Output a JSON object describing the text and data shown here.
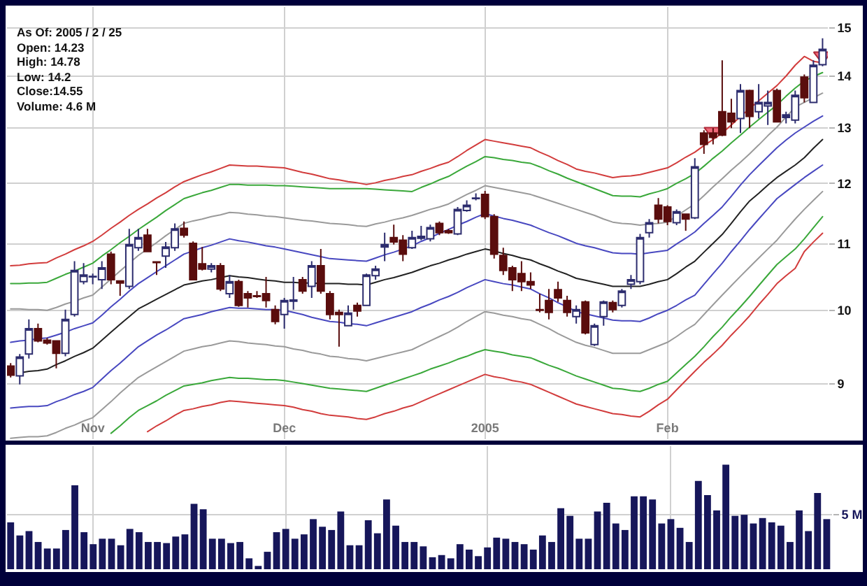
{
  "chart_data": [
    {
      "type": "candlestick",
      "annotations": [
        "As Of: 2005 / 2 / 25",
        "Open: 14.23",
        "High: 14.78",
        "Low: 14.2",
        "Close:14.55",
        "Volume: 4.6 M"
      ],
      "categories": [
        null,
        null,
        null,
        null,
        null,
        null,
        null,
        null,
        null,
        "Nov",
        null,
        null,
        null,
        null,
        null,
        null,
        null,
        null,
        null,
        null,
        null,
        null,
        null,
        null,
        null,
        null,
        null,
        null,
        null,
        null,
        "Dec",
        null,
        null,
        null,
        null,
        null,
        null,
        null,
        null,
        null,
        null,
        null,
        null,
        null,
        null,
        null,
        null,
        null,
        null,
        null,
        null,
        null,
        "2005",
        null,
        null,
        null,
        null,
        null,
        null,
        null,
        null,
        null,
        null,
        null,
        null,
        null,
        null,
        null,
        null,
        null,
        null,
        null,
        "Feb",
        null,
        null,
        null,
        null,
        null,
        null,
        null,
        null,
        null,
        null,
        null,
        null,
        null,
        null,
        null,
        null,
        null
      ],
      "ohlc": [
        [
          9.23,
          9.27,
          9.08,
          9.11
        ],
        [
          9.1,
          9.39,
          8.99,
          9.35
        ],
        [
          9.39,
          9.87,
          9.33,
          9.74
        ],
        [
          9.74,
          9.81,
          9.55,
          9.57
        ],
        [
          9.58,
          9.61,
          9.52,
          9.54
        ],
        [
          9.57,
          9.58,
          9.2,
          9.4
        ],
        [
          9.4,
          10.01,
          9.36,
          9.87
        ],
        [
          9.94,
          10.73,
          9.91,
          10.59
        ],
        [
          10.42,
          10.7,
          10.38,
          10.52
        ],
        [
          10.49,
          10.54,
          10.38,
          10.5
        ],
        [
          10.45,
          10.73,
          10.31,
          10.63
        ],
        [
          10.84,
          10.88,
          10.38,
          10.45
        ],
        [
          10.43,
          10.43,
          10.21,
          10.4
        ],
        [
          10.35,
          11.24,
          10.31,
          10.99
        ],
        [
          10.94,
          11.24,
          10.89,
          11.1
        ],
        [
          11.14,
          11.24,
          10.87,
          10.88
        ],
        [
          10.72,
          10.73,
          10.52,
          10.71
        ],
        [
          10.81,
          11.03,
          10.63,
          10.95
        ],
        [
          10.94,
          11.33,
          10.89,
          11.24
        ],
        [
          11.25,
          11.36,
          11.1,
          11.14
        ],
        [
          11.01,
          11.04,
          10.44,
          10.45
        ],
        [
          10.69,
          10.95,
          10.59,
          10.61
        ],
        [
          10.61,
          10.7,
          10.56,
          10.66
        ],
        [
          10.66,
          10.7,
          10.28,
          10.31
        ],
        [
          10.24,
          10.52,
          10.18,
          10.42
        ],
        [
          10.42,
          10.45,
          10.05,
          10.07
        ],
        [
          10.24,
          10.28,
          10.04,
          10.18
        ],
        [
          10.21,
          10.28,
          10.18,
          10.2
        ],
        [
          10.24,
          10.49,
          10.04,
          10.14
        ],
        [
          10.01,
          10.07,
          9.8,
          9.84
        ],
        [
          9.94,
          10.18,
          9.74,
          10.14
        ],
        [
          10.13,
          10.49,
          10.01,
          10.15
        ],
        [
          10.45,
          10.49,
          10.24,
          10.28
        ],
        [
          10.35,
          10.73,
          10.18,
          10.66
        ],
        [
          10.66,
          10.92,
          10.24,
          10.28
        ],
        [
          10.24,
          10.28,
          9.87,
          9.94
        ],
        [
          9.97,
          10.01,
          9.49,
          9.94
        ],
        [
          9.78,
          10.07,
          9.78,
          9.96
        ],
        [
          10.07,
          10.11,
          9.91,
          9.99
        ],
        [
          10.07,
          10.54,
          10.06,
          10.52
        ],
        [
          10.51,
          10.66,
          10.45,
          10.61
        ],
        [
          10.95,
          11.18,
          10.73,
          10.99
        ],
        [
          11.1,
          11.31,
          10.99,
          11.03
        ],
        [
          11.06,
          11.14,
          10.73,
          10.84
        ],
        [
          10.94,
          11.21,
          10.92,
          11.1
        ],
        [
          11.09,
          11.29,
          11.06,
          11.12
        ],
        [
          11.08,
          11.31,
          11.04,
          11.26
        ],
        [
          11.33,
          11.36,
          11.14,
          11.18
        ],
        [
          11.21,
          11.24,
          11.16,
          11.18
        ],
        [
          11.16,
          11.6,
          11.14,
          11.56
        ],
        [
          11.54,
          11.71,
          11.52,
          11.63
        ],
        [
          11.74,
          11.83,
          11.71,
          11.75
        ],
        [
          11.81,
          11.87,
          11.4,
          11.44
        ],
        [
          11.44,
          11.48,
          10.77,
          10.84
        ],
        [
          10.82,
          10.94,
          10.52,
          10.59
        ],
        [
          10.63,
          10.66,
          10.28,
          10.45
        ],
        [
          10.54,
          10.73,
          10.28,
          10.42
        ],
        [
          10.42,
          10.56,
          10.31,
          10.37
        ],
        [
          10.01,
          10.24,
          9.97,
          10.0
        ],
        [
          10.14,
          10.31,
          9.87,
          9.97
        ],
        [
          10.3,
          10.42,
          10.12,
          10.18
        ],
        [
          10.14,
          10.21,
          9.91,
          9.97
        ],
        [
          9.91,
          10.07,
          9.81,
          10.01
        ],
        [
          10.12,
          10.14,
          9.66,
          9.68
        ],
        [
          9.52,
          9.81,
          9.5,
          9.78
        ],
        [
          9.91,
          10.14,
          9.78,
          10.12
        ],
        [
          10.11,
          10.14,
          9.97,
          10.01
        ],
        [
          10.07,
          10.31,
          10.04,
          10.28
        ],
        [
          10.38,
          10.52,
          10.31,
          10.45
        ],
        [
          10.42,
          11.16,
          10.38,
          11.1
        ],
        [
          11.18,
          11.4,
          11.1,
          11.34
        ],
        [
          11.63,
          11.75,
          11.33,
          11.4
        ],
        [
          11.6,
          11.63,
          11.3,
          11.36
        ],
        [
          11.34,
          11.56,
          11.3,
          11.52
        ],
        [
          11.48,
          11.49,
          11.21,
          11.4
        ],
        [
          11.42,
          12.44,
          11.4,
          12.29
        ],
        [
          12.9,
          12.95,
          12.52,
          12.69
        ],
        [
          12.9,
          12.99,
          12.69,
          12.82
        ],
        [
          13.3,
          14.32,
          12.84,
          12.86
        ],
        [
          13.27,
          13.55,
          12.99,
          13.11
        ],
        [
          13.17,
          13.84,
          12.9,
          13.71
        ],
        [
          13.71,
          13.73,
          12.99,
          13.21
        ],
        [
          13.3,
          13.84,
          13.17,
          13.48
        ],
        [
          13.41,
          13.71,
          13.05,
          13.48
        ],
        [
          13.71,
          13.75,
          13.1,
          13.11
        ],
        [
          13.19,
          13.3,
          13.08,
          13.24
        ],
        [
          13.14,
          13.71,
          13.08,
          13.62
        ],
        [
          13.98,
          14.03,
          13.48,
          13.57
        ],
        [
          13.48,
          14.32,
          13.47,
          14.22
        ],
        [
          14.23,
          14.78,
          14.2,
          14.55
        ]
      ],
      "colors": [
        "#5a0d0d",
        "#ffffff",
        "#ffffff",
        "#5a0d0d",
        "#5a0d0d",
        "#5a0d0d",
        "#ffffff",
        "#ffffff",
        "#ffffff",
        "#2c2c6e",
        "#ffffff",
        "#5a0d0d",
        "#5a0d0d",
        "#ffffff",
        "#ffffff",
        "#5a0d0d",
        "#5a0d0d",
        "#ffffff",
        "#ffffff",
        "#5a0d0d",
        "#5a0d0d",
        "#5a0d0d",
        "#ffffff",
        "#5a0d0d",
        "#ffffff",
        "#5a0d0d",
        "#5a0d0d",
        "#5a0d0d",
        "#5a0d0d",
        "#5a0d0d",
        "#ffffff",
        "#2c2c6e",
        "#5a0d0d",
        "#ffffff",
        "#5a0d0d",
        "#5a0d0d",
        "#5a0d0d",
        "#ffffff",
        "#5a0d0d",
        "#ffffff",
        "#ffffff",
        "#2c2c6e",
        "#5a0d0d",
        "#5a0d0d",
        "#ffffff",
        "#2c2c6e",
        "#ffffff",
        "#5a0d0d",
        "#5a0d0d",
        "#ffffff",
        "#ffffff",
        "#2c2c6e",
        "#5a0d0d",
        "#5a0d0d",
        "#5a0d0d",
        "#5a0d0d",
        "#5a0d0d",
        "#5a0d0d",
        "#5a0d0d",
        "#5a0d0d",
        "#5a0d0d",
        "#5a0d0d",
        "#ffffff",
        "#5a0d0d",
        "#ffffff",
        "#ffffff",
        "#5a0d0d",
        "#ffffff",
        "#ffffff",
        "#ffffff",
        "#ffffff",
        "#5a0d0d",
        "#5a0d0d",
        "#ffffff",
        "#5a0d0d",
        "#ffffff",
        "#5a0d0d",
        "#5a0d0d",
        "#5a0d0d",
        "#5a0d0d",
        "#ffffff",
        "#5a0d0d",
        "#ffffff",
        "#ffffff",
        "#5a0d0d",
        "#2c2c6e",
        "#ffffff",
        "#5a0d0d",
        "#ffffff",
        "#ffffff"
      ],
      "ylim": [
        8.31,
        15.46
      ],
      "yticks": [
        9,
        10,
        11,
        12,
        13,
        14,
        15
      ],
      "log": true,
      "grid": true,
      "series": [
        {
          "type": "line",
          "color": "#d23c3c",
          "values": [
            10.66,
            10.67,
            10.69,
            10.7,
            10.71,
            10.78,
            10.84,
            10.91,
            10.97,
            11.04,
            11.14,
            11.25,
            11.35,
            11.46,
            11.56,
            11.65,
            11.75,
            11.84,
            11.94,
            12.03,
            12.09,
            12.15,
            12.2,
            12.26,
            12.32,
            12.31,
            12.3,
            12.3,
            12.29,
            12.28,
            12.27,
            12.23,
            12.19,
            12.16,
            12.12,
            12.08,
            12.06,
            12.03,
            12.01,
            11.98,
            12.01,
            12.05,
            12.08,
            12.12,
            12.15,
            12.21,
            12.26,
            12.32,
            12.37,
            12.47,
            12.58,
            12.68,
            12.78,
            12.75,
            12.72,
            12.69,
            12.66,
            12.63,
            12.55,
            12.48,
            12.4,
            12.33,
            12.25,
            12.21,
            12.18,
            12.14,
            12.1,
            12.12,
            12.13,
            12.15,
            12.19,
            12.23,
            12.27,
            12.36,
            12.46,
            12.55,
            12.67,
            12.78,
            12.9,
            13.05,
            13.21,
            13.36,
            13.51,
            13.66,
            13.81,
            14.0,
            14.22,
            14.4,
            14.3,
            14.27
          ]
        },
        {
          "type": "line",
          "color": "#3aa83a",
          "values": [
            10.39,
            10.39,
            10.4,
            10.4,
            10.41,
            10.47,
            10.53,
            10.58,
            10.64,
            10.7,
            10.81,
            10.91,
            11.02,
            11.12,
            11.23,
            11.33,
            11.43,
            11.54,
            11.64,
            11.74,
            11.79,
            11.84,
            11.88,
            11.93,
            11.98,
            11.98,
            11.97,
            11.97,
            11.97,
            11.96,
            11.96,
            11.95,
            11.94,
            11.93,
            11.92,
            11.91,
            11.91,
            11.91,
            11.91,
            11.91,
            11.9,
            11.89,
            11.88,
            11.87,
            11.86,
            11.93,
            11.99,
            12.06,
            12.12,
            12.21,
            12.3,
            12.38,
            12.47,
            12.45,
            12.42,
            12.4,
            12.37,
            12.35,
            12.29,
            12.22,
            12.16,
            12.09,
            12.03,
            11.97,
            11.91,
            11.85,
            11.79,
            11.78,
            11.78,
            11.77,
            11.82,
            11.86,
            11.91,
            12.0,
            12.08,
            12.17,
            12.3,
            12.44,
            12.57,
            12.72,
            12.86,
            13.01,
            13.15,
            13.29,
            13.43,
            13.6,
            13.76,
            13.9,
            13.99,
            14.07
          ]
        },
        {
          "type": "line",
          "color": "#9a9a9a",
          "values": [
            10.02,
            10.02,
            10.01,
            10.01,
            10.0,
            10.04,
            10.09,
            10.13,
            10.18,
            10.22,
            10.34,
            10.46,
            10.58,
            10.7,
            10.82,
            10.92,
            11.02,
            11.13,
            11.23,
            11.33,
            11.37,
            11.4,
            11.44,
            11.47,
            11.51,
            11.5,
            11.48,
            11.47,
            11.45,
            11.44,
            11.42,
            11.4,
            11.38,
            11.37,
            11.35,
            11.33,
            11.32,
            11.31,
            11.29,
            11.28,
            11.32,
            11.35,
            11.39,
            11.42,
            11.46,
            11.51,
            11.56,
            11.6,
            11.65,
            11.73,
            11.81,
            11.88,
            11.96,
            11.93,
            11.9,
            11.87,
            11.84,
            11.81,
            11.76,
            11.71,
            11.66,
            11.61,
            11.56,
            11.51,
            11.46,
            11.4,
            11.35,
            11.33,
            11.32,
            11.3,
            11.32,
            11.33,
            11.35,
            11.45,
            11.55,
            11.65,
            11.79,
            11.94,
            12.08,
            12.23,
            12.37,
            12.52,
            12.68,
            12.85,
            13.01,
            13.2,
            13.39,
            13.48,
            13.57,
            13.66
          ]
        },
        {
          "type": "line",
          "color": "#4848c0",
          "values": [
            9.55,
            9.57,
            9.58,
            9.6,
            9.61,
            9.65,
            9.69,
            9.74,
            9.78,
            9.82,
            9.93,
            10.05,
            10.16,
            10.28,
            10.39,
            10.48,
            10.57,
            10.66,
            10.75,
            10.84,
            10.89,
            10.94,
            10.98,
            11.03,
            11.08,
            11.05,
            11.03,
            11.0,
            10.97,
            10.95,
            10.92,
            10.89,
            10.86,
            10.83,
            10.8,
            10.77,
            10.76,
            10.75,
            10.74,
            10.73,
            10.78,
            10.83,
            10.87,
            10.92,
            10.97,
            11.04,
            11.1,
            11.17,
            11.23,
            11.3,
            11.36,
            11.43,
            11.49,
            11.45,
            11.41,
            11.38,
            11.34,
            11.3,
            11.24,
            11.18,
            11.13,
            11.07,
            11.01,
            10.97,
            10.94,
            10.9,
            10.86,
            10.85,
            10.85,
            10.84,
            10.86,
            10.88,
            10.9,
            11.0,
            11.09,
            11.19,
            11.33,
            11.46,
            11.6,
            11.78,
            11.97,
            12.15,
            12.31,
            12.47,
            12.63,
            12.77,
            12.9,
            13.01,
            13.12,
            13.22
          ]
        },
        {
          "type": "line",
          "color": "#222222",
          "values": [
            null,
            9.14,
            9.16,
            9.17,
            9.19,
            9.25,
            9.3,
            9.36,
            9.41,
            9.47,
            9.58,
            9.69,
            9.8,
            9.91,
            10.02,
            10.09,
            10.16,
            10.23,
            10.3,
            10.37,
            10.4,
            10.43,
            10.45,
            10.48,
            10.51,
            10.49,
            10.48,
            10.46,
            10.44,
            10.43,
            10.41,
            10.41,
            10.4,
            10.4,
            10.39,
            10.39,
            10.39,
            10.38,
            10.38,
            10.37,
            10.41,
            10.45,
            10.48,
            10.52,
            10.56,
            10.61,
            10.66,
            10.7,
            10.75,
            10.79,
            10.84,
            10.88,
            10.92,
            10.89,
            10.85,
            10.82,
            10.78,
            10.75,
            10.69,
            10.64,
            10.58,
            10.53,
            10.47,
            10.44,
            10.41,
            10.38,
            10.35,
            10.35,
            10.35,
            10.35,
            10.38,
            10.42,
            10.45,
            10.54,
            10.64,
            10.73,
            10.87,
            11.01,
            11.15,
            11.33,
            11.52,
            11.7,
            11.83,
            11.97,
            12.1,
            12.21,
            12.32,
            12.45,
            12.62,
            12.78
          ]
        },
        {
          "type": "line",
          "color": "#4848c0",
          "values": [
            8.69,
            8.7,
            8.71,
            8.71,
            8.72,
            8.77,
            8.81,
            8.86,
            8.9,
            8.95,
            9.06,
            9.17,
            9.27,
            9.38,
            9.49,
            9.57,
            9.65,
            9.72,
            9.8,
            9.88,
            9.91,
            9.94,
            9.98,
            10.01,
            10.04,
            10.03,
            10.03,
            10.02,
            10.01,
            10.01,
            10.0,
            9.97,
            9.94,
            9.9,
            9.87,
            9.84,
            9.83,
            9.81,
            9.8,
            9.78,
            9.82,
            9.86,
            9.9,
            9.94,
            9.98,
            10.04,
            10.09,
            10.15,
            10.2,
            10.26,
            10.33,
            10.39,
            10.45,
            10.42,
            10.39,
            10.37,
            10.34,
            10.31,
            10.24,
            10.18,
            10.11,
            10.05,
            9.98,
            9.95,
            9.92,
            9.89,
            9.86,
            9.85,
            9.85,
            9.84,
            9.89,
            9.95,
            10.0,
            10.07,
            10.15,
            10.22,
            10.38,
            10.54,
            10.7,
            10.88,
            11.05,
            11.23,
            11.4,
            11.57,
            11.74,
            11.86,
            11.98,
            12.1,
            12.21,
            12.32
          ]
        },
        {
          "type": "line",
          "color": "#9a9a9a",
          "values": [
            8.32,
            8.33,
            8.34,
            8.34,
            8.35,
            8.39,
            8.44,
            8.48,
            8.53,
            8.57,
            8.67,
            8.77,
            8.88,
            8.98,
            9.08,
            9.15,
            9.22,
            9.29,
            9.36,
            9.43,
            9.46,
            9.49,
            9.51,
            9.54,
            9.57,
            9.56,
            9.54,
            9.53,
            9.52,
            9.5,
            9.49,
            9.46,
            9.44,
            9.41,
            9.39,
            9.36,
            9.35,
            9.33,
            9.32,
            9.3,
            9.33,
            9.36,
            9.39,
            9.42,
            9.45,
            9.51,
            9.57,
            9.63,
            9.69,
            9.76,
            9.84,
            9.91,
            9.98,
            9.96,
            9.93,
            9.91,
            9.88,
            9.86,
            9.8,
            9.74,
            9.67,
            9.61,
            9.55,
            9.51,
            9.48,
            9.44,
            9.4,
            9.4,
            9.4,
            9.4,
            9.45,
            9.5,
            9.55,
            9.63,
            9.72,
            9.8,
            9.94,
            10.08,
            10.22,
            10.36,
            10.5,
            10.64,
            10.78,
            10.92,
            11.06,
            11.23,
            11.4,
            11.56,
            11.71,
            11.86
          ]
        },
        {
          "type": "line",
          "color": "#3aa83a",
          "values": [
            null,
            null,
            null,
            null,
            null,
            null,
            null,
            null,
            null,
            null,
            null,
            8.38,
            8.47,
            8.57,
            8.66,
            8.72,
            8.78,
            8.85,
            8.91,
            8.97,
            8.99,
            9.01,
            9.04,
            9.06,
            9.08,
            9.07,
            9.07,
            9.06,
            9.05,
            9.05,
            9.04,
            9.02,
            9.0,
            8.98,
            8.96,
            8.94,
            8.93,
            8.92,
            8.91,
            8.9,
            8.94,
            8.98,
            9.02,
            9.06,
            9.1,
            9.14,
            9.19,
            9.23,
            9.27,
            9.32,
            9.36,
            9.41,
            9.45,
            9.43,
            9.41,
            9.38,
            9.36,
            9.34,
            9.29,
            9.24,
            9.2,
            9.15,
            9.1,
            9.06,
            9.02,
            8.98,
            8.94,
            8.93,
            8.91,
            8.9,
            8.94,
            8.99,
            9.03,
            9.14,
            9.25,
            9.36,
            9.49,
            9.63,
            9.76,
            9.91,
            10.05,
            10.2,
            10.36,
            10.52,
            10.68,
            10.8,
            10.92,
            11.08,
            11.26,
            11.44
          ]
        },
        {
          "type": "line",
          "color": "#d23c3c",
          "values": [
            null,
            null,
            null,
            null,
            null,
            null,
            null,
            null,
            null,
            null,
            null,
            null,
            null,
            null,
            null,
            8.4,
            8.47,
            8.53,
            8.6,
            8.66,
            8.68,
            8.71,
            8.73,
            8.76,
            8.78,
            8.77,
            8.76,
            8.75,
            8.74,
            8.73,
            8.72,
            8.7,
            8.67,
            8.65,
            8.62,
            8.6,
            8.59,
            8.58,
            8.56,
            8.55,
            8.58,
            8.62,
            8.65,
            8.69,
            8.72,
            8.77,
            8.82,
            8.87,
            8.92,
            8.97,
            9.02,
            9.07,
            9.12,
            9.09,
            9.07,
            9.04,
            9.02,
            8.99,
            8.94,
            8.89,
            8.84,
            8.79,
            8.74,
            8.71,
            8.68,
            8.65,
            8.62,
            8.61,
            8.59,
            8.58,
            8.65,
            8.73,
            8.8,
            8.92,
            9.04,
            9.16,
            9.28,
            9.39,
            9.51,
            9.65,
            9.78,
            9.92,
            10.08,
            10.23,
            10.39,
            10.51,
            10.62,
            10.88,
            11.03,
            11.17
          ]
        },
        {
          "type": "scatter",
          "color": "#f06a7a",
          "marker": "triangle",
          "values": [
            null,
            null,
            null,
            null,
            null,
            null,
            null,
            null,
            null,
            null,
            null,
            null,
            null,
            null,
            null,
            null,
            null,
            null,
            null,
            null,
            null,
            null,
            null,
            null,
            null,
            null,
            null,
            null,
            null,
            null,
            null,
            null,
            null,
            null,
            null,
            null,
            null,
            null,
            null,
            null,
            null,
            null,
            null,
            null,
            null,
            null,
            null,
            null,
            null,
            null,
            null,
            null,
            null,
            null,
            null,
            null,
            null,
            null,
            null,
            null,
            null,
            null,
            null,
            null,
            null,
            null,
            null,
            null,
            null,
            null,
            null,
            null,
            null,
            null,
            null,
            null,
            null,
            12.93,
            null,
            null,
            null,
            null,
            null,
            null,
            null,
            null,
            null,
            null,
            null,
            14.41
          ]
        }
      ]
    },
    {
      "type": "bar",
      "categories": [
        null,
        null,
        null,
        null,
        null,
        null,
        null,
        null,
        null,
        null,
        null,
        null,
        null,
        null,
        null,
        null,
        null,
        null,
        null,
        null,
        null,
        null,
        null,
        null,
        null,
        null,
        null,
        null,
        null,
        null,
        null,
        null,
        null,
        null,
        null,
        null,
        null,
        null,
        null,
        null,
        null,
        null,
        null,
        null,
        null,
        null,
        null,
        null,
        null,
        null,
        null,
        null,
        null,
        null,
        null,
        null,
        null,
        null,
        null,
        null,
        null,
        null,
        null,
        null,
        null,
        null,
        null,
        null,
        null,
        null,
        null,
        null,
        null,
        null,
        null,
        null,
        null,
        null,
        null,
        null,
        null,
        null,
        null,
        null,
        null,
        null,
        null,
        null,
        null,
        null
      ],
      "values": [
        4.3,
        3.1,
        3.5,
        2.5,
        1.9,
        1.9,
        3.6,
        7.7,
        3.4,
        2.3,
        2.8,
        2.8,
        2.2,
        3.7,
        3.4,
        2.5,
        2.5,
        2.4,
        3.0,
        3.2,
        6.0,
        5.5,
        2.8,
        2.8,
        2.4,
        2.5,
        1.0,
        0.3,
        1.6,
        3.4,
        3.7,
        2.8,
        3.2,
        4.6,
        3.9,
        3.6,
        5.3,
        2.2,
        2.2,
        4.5,
        3.3,
        6.4,
        4.0,
        2.5,
        2.5,
        2.1,
        1.1,
        1.3,
        1.0,
        2.3,
        1.8,
        1.2,
        2.0,
        2.9,
        2.8,
        2.5,
        2.3,
        1.8,
        3.1,
        2.5,
        5.6,
        4.9,
        2.8,
        2.8,
        5.3,
        6.1,
        4.2,
        3.6,
        6.7,
        6.7,
        6.4,
        4.2,
        4.6,
        3.8,
        2.5,
        8.1,
        6.8,
        5.4,
        9.6,
        4.9,
        5.0,
        4.2,
        4.7,
        4.3,
        4.0,
        2.5,
        5.4,
        3.5,
        7.0,
        4.6
      ],
      "color": "#16165a",
      "ylim": [
        0,
        11.3
      ],
      "yticks": [
        {
          "value": 5,
          "label": "5 M"
        }
      ],
      "grid": true,
      "tick_labels": "y"
    }
  ]
}
